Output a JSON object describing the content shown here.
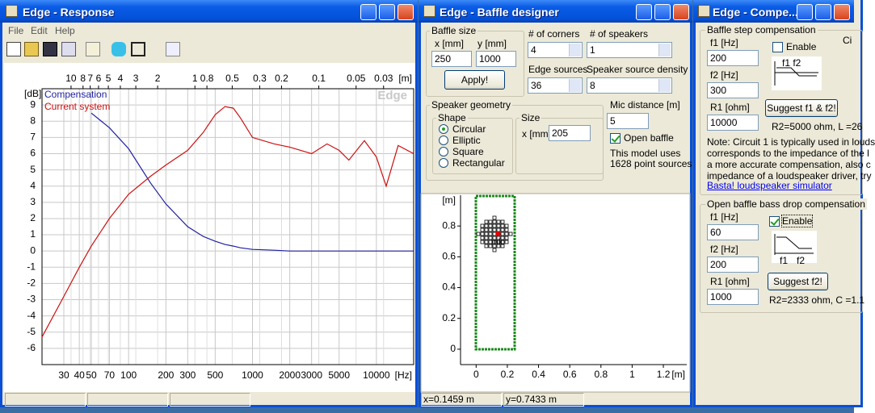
{
  "response_window": {
    "title": "Edge - Response",
    "menu": [
      "File",
      "Edit",
      "Help"
    ],
    "chart_data": {
      "type": "line",
      "xscale": "log",
      "x_unit": "[Hz]",
      "y_unit": "[dB]",
      "x2_unit": "[m]",
      "watermark": "Edge",
      "grid": true,
      "legend": "upper left",
      "x": [
        20,
        30,
        40,
        50,
        70,
        100,
        150,
        200,
        300,
        400,
        500,
        600,
        700,
        800,
        1000,
        1500,
        2000,
        3000,
        4000,
        5000,
        6000,
        8000,
        10000,
        12000,
        15000,
        20000
      ],
      "series": [
        {
          "name": "Compensation",
          "color": "#1f1fa0",
          "values": [
            null,
            null,
            null,
            8.5,
            7.6,
            6.3,
            4.2,
            2.9,
            1.5,
            0.9,
            0.6,
            0.4,
            0.3,
            0.2,
            0.1,
            0.05,
            0,
            0,
            0,
            0,
            0,
            0,
            0,
            0,
            0,
            0
          ]
        },
        {
          "name": "Current system",
          "color": "#cc1111",
          "values": [
            -5.3,
            -2.8,
            -1,
            0.3,
            2,
            3.5,
            4.6,
            5.3,
            6.2,
            7.3,
            8.4,
            8.9,
            8.8,
            8.2,
            7,
            6.6,
            6.4,
            6,
            6.6,
            6.2,
            5.6,
            6.8,
            5.8,
            4,
            6.5,
            6
          ]
        }
      ],
      "xlim": [
        20,
        20000
      ],
      "ylim": [
        -7,
        10
      ],
      "xticks": [
        30,
        40,
        50,
        70,
        100,
        200,
        300,
        500,
        1000,
        2000,
        3000,
        5000,
        10000
      ],
      "yticks": [
        -6,
        -5,
        -4,
        -3,
        -2,
        -1,
        0,
        1,
        2,
        3,
        4,
        5,
        6,
        7,
        8,
        9
      ],
      "x2lim": [
        17.15,
        0.01715
      ],
      "x2ticks": [
        10,
        8,
        7,
        6,
        5,
        4,
        3,
        2,
        1,
        0.8,
        0.5,
        0.3,
        0.2,
        0.1,
        0.05,
        0.03
      ]
    }
  },
  "baffle_window": {
    "title": "Edge - Baffle designer",
    "baffle_size": {
      "label": "Baffle size",
      "x_label": "x [mm]",
      "x": 250,
      "y_label": "y [mm]",
      "y": 1000,
      "button": "Apply!"
    },
    "corners": {
      "label": "# of corners",
      "value": 4
    },
    "speakers": {
      "label": "# of speakers",
      "value": 1
    },
    "edge_sources": {
      "label": "Edge sources",
      "value": 36
    },
    "source_density": {
      "label": "Speaker source density",
      "value": 8
    },
    "geometry": {
      "label": "Speaker geometry",
      "shape_label": "Shape",
      "shapes": [
        {
          "label": "Circular",
          "checked": true
        },
        {
          "label": "Elliptic",
          "checked": false
        },
        {
          "label": "Square",
          "checked": false
        },
        {
          "label": "Rectangular",
          "checked": false
        }
      ],
      "size_label": "Size",
      "size_x_label": "x [mm]",
      "size_x": 205
    },
    "mic_distance": {
      "label": "Mic distance [m]",
      "value": 5
    },
    "open_baffle": {
      "label": "Open baffle",
      "checked": true
    },
    "model_note": [
      "This model uses",
      "1628 point sources"
    ],
    "status": [
      "x=0.1459 m",
      "y=0.7433 m"
    ],
    "chart_data": {
      "type": "scatter",
      "x_unit": "[m]",
      "y_unit": "[m]",
      "xlim": [
        -0.1,
        1.35
      ],
      "ylim": [
        -0.1,
        1.0
      ],
      "xticks": [
        0,
        0.2,
        0.4,
        0.6,
        0.8,
        1,
        1.2
      ],
      "yticks": [
        0,
        0.2,
        0.4,
        0.6,
        0.8
      ],
      "series": [
        {
          "color": "#dd0000",
          "x": [
            0.14
          ],
          "values": [
            0.75
          ]
        }
      ],
      "annotation": "mic"
    }
  },
  "compensation_window": {
    "title": "Edge - Compe...",
    "baffle_step": {
      "label": "Baffle step compensation",
      "f1_label": "f1 [Hz]",
      "f1": 200,
      "f2_label": "f2 [Hz]",
      "f2": 300,
      "r1_label": "R1 [ohm]",
      "r1": 10000,
      "enable": {
        "label": "Enable",
        "checked": false
      },
      "diagram_label": "f1 f2",
      "cut_label": "Ci",
      "button": "Suggest f1 & f2!",
      "result": "R2=5000 ohm, L =26"
    },
    "note": [
      "Note: Circuit 1 is typically used in louds",
      "corresponds to the impedance of the l",
      "a more accurate compensation, also c",
      "impedance of a loudspeaker driver, try"
    ],
    "link": "Basta! loudspeaker simulator",
    "bass_drop": {
      "label": "Open baffle bass drop compensation",
      "f1_label": "f1 [Hz]",
      "f1": 60,
      "f2_label": "f2 [Hz]",
      "f2": 200,
      "r1_label": "R1 [ohm]",
      "r1": 1000,
      "enable": {
        "label": "Enable",
        "checked": true
      },
      "diagram_f1": "f1",
      "diagram_f2": "f2",
      "button": "Suggest f2!",
      "result": "R2=2333 ohm, C =1.1"
    }
  }
}
